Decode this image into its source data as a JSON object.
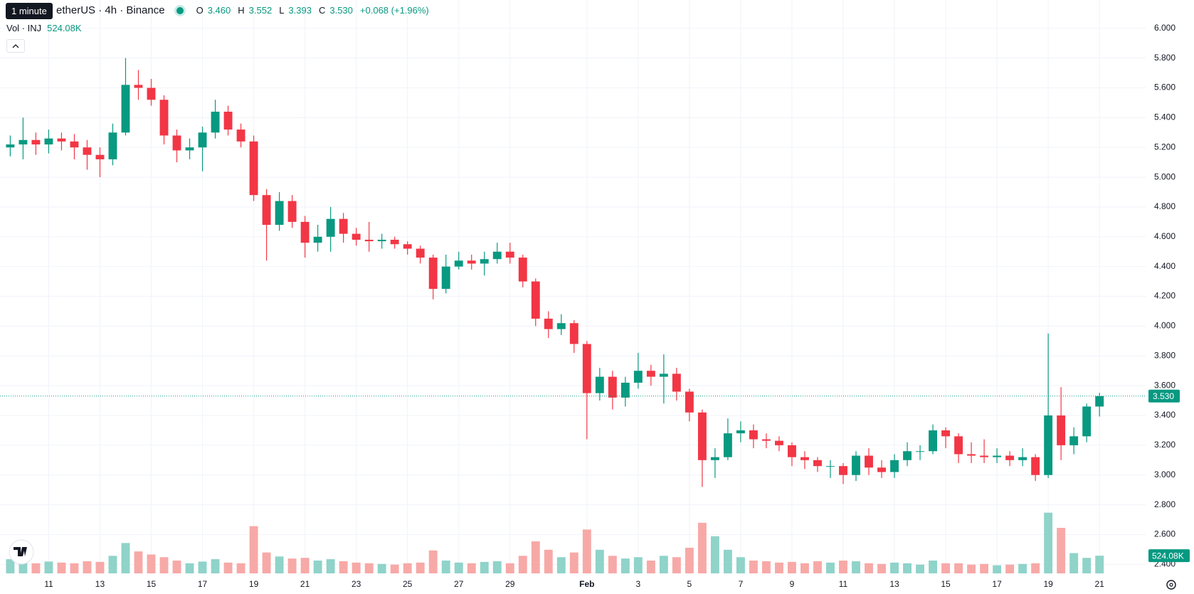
{
  "chart_data": [
    {
      "type": "candlestick",
      "title": "etherUS · 4h · Binance",
      "tooltip": "1 minute",
      "ohlc_legend": {
        "open_label": "O",
        "open": "3.460",
        "high_label": "H",
        "high": "3.552",
        "low_label": "L",
        "low": "3.393",
        "close_label": "C",
        "close": "3.530",
        "change": "+0.068 (+1.96%)"
      },
      "x": [
        9.5,
        10,
        10.5,
        11,
        11.5,
        12,
        12.5,
        13,
        13.5,
        14,
        14.5,
        15,
        15.5,
        16,
        16.5,
        17,
        17.5,
        18,
        18.5,
        19,
        19.5,
        20,
        20.5,
        21,
        21.5,
        22,
        22.5,
        23,
        23.5,
        24,
        24.5,
        25,
        25.5,
        26,
        26.5,
        27,
        27.5,
        28,
        28.5,
        29,
        29.5,
        30,
        30.5,
        31,
        31.5,
        32,
        32.5,
        33,
        33.5,
        34,
        34.5,
        35,
        35.5,
        36,
        36.5,
        37,
        37.5,
        38,
        38.5,
        39,
        39.5,
        40,
        40.5,
        41,
        41.5,
        42,
        42.5,
        43,
        43.5,
        44,
        44.5,
        45,
        45.5,
        46,
        46.5,
        47,
        47.5,
        48,
        48.5,
        49,
        49.5,
        50,
        50.5,
        51,
        51.5,
        52
      ],
      "open": [
        5.2,
        5.22,
        5.25,
        5.22,
        5.26,
        5.24,
        5.2,
        5.15,
        5.12,
        5.3,
        5.62,
        5.6,
        5.52,
        5.28,
        5.18,
        5.2,
        5.3,
        5.44,
        5.32,
        5.24,
        4.88,
        4.68,
        4.84,
        4.7,
        4.56,
        4.6,
        4.72,
        4.62,
        4.58,
        4.57,
        4.58,
        4.55,
        4.52,
        4.46,
        4.25,
        4.4,
        4.44,
        4.42,
        4.45,
        4.5,
        4.46,
        4.3,
        4.05,
        3.98,
        4.02,
        3.88,
        3.55,
        3.66,
        3.52,
        3.62,
        3.7,
        3.66,
        3.68,
        3.56,
        3.42,
        3.1,
        3.12,
        3.28,
        3.3,
        3.24,
        3.23,
        3.2,
        3.12,
        3.1,
        3.06,
        3.06,
        3.0,
        3.13,
        3.05,
        3.02,
        3.1,
        3.16,
        3.16,
        3.3,
        3.26,
        3.14,
        3.13,
        3.12,
        3.13,
        3.1,
        3.12,
        3.0,
        3.4,
        3.2,
        3.26,
        3.46
      ],
      "high": [
        5.28,
        5.4,
        5.3,
        5.32,
        5.3,
        5.29,
        5.25,
        5.2,
        5.36,
        5.8,
        5.72,
        5.66,
        5.55,
        5.32,
        5.26,
        5.34,
        5.52,
        5.48,
        5.36,
        5.28,
        4.92,
        4.9,
        4.88,
        4.74,
        4.68,
        4.8,
        4.76,
        4.66,
        4.7,
        4.62,
        4.6,
        4.57,
        4.54,
        4.48,
        4.48,
        4.5,
        4.48,
        4.5,
        4.56,
        4.56,
        4.48,
        4.32,
        4.1,
        4.08,
        4.04,
        3.9,
        3.72,
        3.7,
        3.66,
        3.82,
        3.74,
        3.81,
        3.72,
        3.58,
        3.44,
        3.18,
        3.38,
        3.36,
        3.34,
        3.28,
        3.26,
        3.22,
        3.16,
        3.12,
        3.1,
        3.08,
        3.16,
        3.18,
        3.1,
        3.14,
        3.22,
        3.2,
        3.34,
        3.32,
        3.28,
        3.22,
        3.24,
        3.18,
        3.16,
        3.18,
        3.14,
        3.95,
        3.59,
        3.32,
        3.48,
        3.552
      ],
      "low": [
        5.14,
        5.12,
        5.15,
        5.16,
        5.18,
        5.12,
        5.05,
        5.0,
        5.08,
        5.28,
        5.52,
        5.48,
        5.22,
        5.1,
        5.12,
        5.04,
        5.26,
        5.28,
        5.2,
        4.84,
        4.44,
        4.64,
        4.66,
        4.46,
        4.5,
        4.5,
        4.56,
        4.54,
        4.5,
        4.52,
        4.52,
        4.48,
        4.42,
        4.18,
        4.22,
        4.38,
        4.38,
        4.34,
        4.42,
        4.42,
        4.26,
        4.0,
        3.92,
        3.94,
        3.82,
        3.24,
        3.5,
        3.44,
        3.46,
        3.58,
        3.6,
        3.48,
        3.5,
        3.36,
        2.92,
        2.98,
        3.1,
        3.22,
        3.18,
        3.18,
        3.16,
        3.06,
        3.04,
        3.02,
        2.98,
        2.94,
        2.96,
        3.0,
        2.98,
        2.98,
        3.06,
        3.1,
        3.14,
        3.18,
        3.08,
        3.08,
        3.08,
        3.08,
        3.06,
        3.06,
        2.96,
        2.98,
        3.1,
        3.14,
        3.22,
        3.393
      ],
      "close": [
        5.22,
        5.25,
        5.22,
        5.26,
        5.24,
        5.2,
        5.15,
        5.12,
        5.3,
        5.62,
        5.6,
        5.52,
        5.28,
        5.18,
        5.2,
        5.3,
        5.44,
        5.32,
        5.24,
        4.88,
        4.68,
        4.84,
        4.7,
        4.56,
        4.6,
        4.72,
        4.62,
        4.58,
        4.57,
        4.58,
        4.55,
        4.52,
        4.46,
        4.25,
        4.4,
        4.44,
        4.42,
        4.45,
        4.5,
        4.46,
        4.3,
        4.05,
        3.98,
        4.02,
        3.88,
        3.55,
        3.66,
        3.52,
        3.62,
        3.7,
        3.66,
        3.68,
        3.56,
        3.42,
        3.1,
        3.12,
        3.28,
        3.3,
        3.24,
        3.23,
        3.2,
        3.12,
        3.1,
        3.06,
        3.06,
        3.0,
        3.13,
        3.05,
        3.02,
        3.1,
        3.16,
        3.16,
        3.3,
        3.26,
        3.14,
        3.13,
        3.12,
        3.13,
        3.1,
        3.12,
        3.0,
        3.4,
        3.2,
        3.26,
        3.46,
        3.53
      ],
      "up_color": "#089981",
      "down_color": "#f23645",
      "last_price": {
        "value": 3.53,
        "label": "3.530"
      },
      "xlim": [
        9.1,
        53.8
      ],
      "xticks": [
        11,
        13,
        15,
        17,
        19,
        21,
        23,
        25,
        27,
        29,
        {
          "value": 32,
          "label": "Feb"
        },
        {
          "value": 34,
          "label": "3"
        },
        {
          "value": 36,
          "label": "5"
        },
        {
          "value": 38,
          "label": "7"
        },
        {
          "value": 40,
          "label": "9"
        },
        {
          "value": 42,
          "label": "11"
        },
        {
          "value": 44,
          "label": "13"
        },
        {
          "value": 46,
          "label": "15"
        },
        {
          "value": 48,
          "label": "17"
        },
        {
          "value": 50,
          "label": "19"
        },
        {
          "value": 52,
          "label": "21"
        }
      ],
      "ylim": [
        2.33,
        6.19
      ],
      "yticks": [
        {
          "value": 2.4,
          "label": "2.400"
        },
        {
          "value": 2.6,
          "label": "2.600"
        },
        {
          "value": 2.8,
          "label": "2.800"
        },
        {
          "value": 3.0,
          "label": "3.000"
        },
        {
          "value": 3.2,
          "label": "3.200"
        },
        {
          "value": 3.4,
          "label": "3.400"
        },
        {
          "value": 3.6,
          "label": "3.600"
        },
        {
          "value": 3.8,
          "label": "3.800"
        },
        {
          "value": 4.0,
          "label": "4.000"
        },
        {
          "value": 4.2,
          "label": "4.200"
        },
        {
          "value": 4.4,
          "label": "4.400"
        },
        {
          "value": 4.6,
          "label": "4.600"
        },
        {
          "value": 4.8,
          "label": "4.800"
        },
        {
          "value": 5.0,
          "label": "5.000"
        },
        {
          "value": 5.2,
          "label": "5.200"
        },
        {
          "value": 5.4,
          "label": "5.400"
        },
        {
          "value": 5.6,
          "label": "5.600"
        },
        {
          "value": 5.8,
          "label": "5.800"
        },
        {
          "value": 6.0,
          "label": "6.000"
        }
      ],
      "grid": true
    },
    {
      "type": "bar",
      "title": "Vol · INJ",
      "last_value_label": "524.08K",
      "values": [
        420000,
        380000,
        300000,
        350000,
        320000,
        300000,
        360000,
        340000,
        520000,
        900000,
        650000,
        560000,
        480000,
        380000,
        300000,
        350000,
        420000,
        320000,
        300000,
        1400000,
        620000,
        500000,
        440000,
        460000,
        380000,
        420000,
        360000,
        320000,
        300000,
        280000,
        260000,
        300000,
        320000,
        680000,
        380000,
        320000,
        300000,
        340000,
        360000,
        300000,
        520000,
        950000,
        700000,
        480000,
        620000,
        1300000,
        700000,
        520000,
        440000,
        480000,
        380000,
        520000,
        480000,
        760000,
        1500000,
        1100000,
        700000,
        480000,
        380000,
        360000,
        320000,
        340000,
        300000,
        360000,
        320000,
        380000,
        360000,
        300000,
        280000,
        320000,
        300000,
        260000,
        380000,
        300000,
        300000,
        260000,
        280000,
        240000,
        260000,
        280000,
        300000,
        1800000,
        1350000,
        600000,
        460000,
        524080
      ],
      "up_color": "#8fd3c9",
      "down_color": "#f7a9a7",
      "ylim": [
        0,
        17000000
      ]
    }
  ]
}
